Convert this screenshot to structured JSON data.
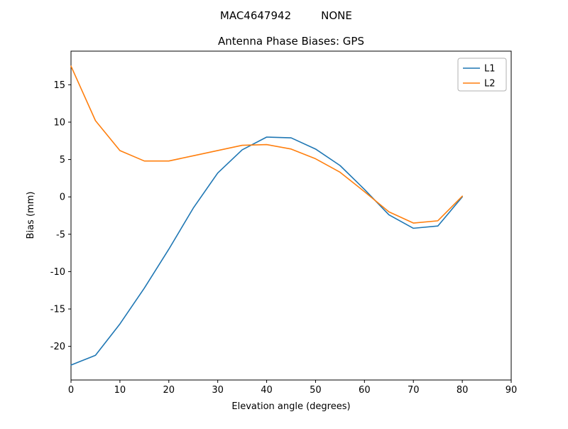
{
  "header": {
    "station": "MAC4647942",
    "mode": "NONE"
  },
  "chart_data": {
    "type": "line",
    "suptitle": "MAC4647942      NONE",
    "title": "Antenna Phase Biases: GPS",
    "xlabel": "Elevation angle (degrees)",
    "ylabel": "Bias (mm)",
    "xlim": [
      0,
      90
    ],
    "ylim": [
      -24.5,
      19.5
    ],
    "xticks": [
      0,
      10,
      20,
      30,
      40,
      50,
      60,
      70,
      80,
      90
    ],
    "yticks": [
      -20,
      -15,
      -10,
      -5,
      0,
      5,
      10,
      15
    ],
    "grid": false,
    "legend_position": "upper right",
    "frame_color": "#000000",
    "legend_border_color": "#b0b0b0",
    "x": [
      0,
      5,
      10,
      15,
      20,
      25,
      30,
      35,
      40,
      45,
      50,
      55,
      60,
      65,
      70,
      75,
      80
    ],
    "series": [
      {
        "name": "L1",
        "color": "#1f77b4",
        "values": [
          -22.5,
          -21.2,
          -17.0,
          -12.2,
          -7.0,
          -1.5,
          3.2,
          6.3,
          8.0,
          7.9,
          6.4,
          4.2,
          1.0,
          -2.4,
          -4.2,
          -3.9,
          0.0
        ]
      },
      {
        "name": "L2",
        "color": "#ff7f0e",
        "values": [
          17.5,
          10.2,
          6.2,
          4.8,
          4.8,
          5.5,
          6.2,
          6.9,
          7.0,
          6.4,
          5.1,
          3.3,
          0.7,
          -2.0,
          -3.5,
          -3.2,
          0.1
        ]
      }
    ]
  }
}
